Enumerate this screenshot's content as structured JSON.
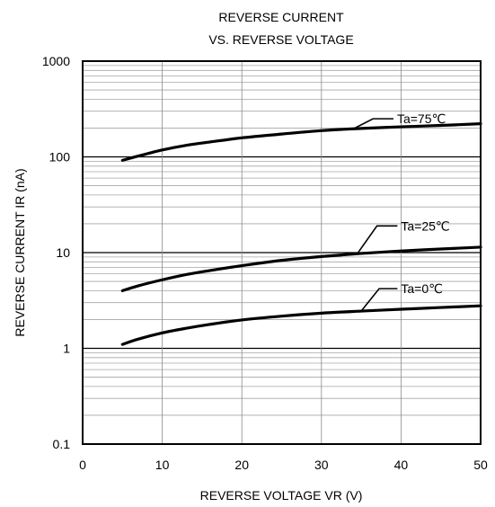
{
  "chart_data": {
    "type": "line",
    "title_line1": "REVERSE CURRENT",
    "title_line2": "VS. REVERSE VOLTAGE",
    "xlabel": "REVERSE VOLTAGE VR (V)",
    "ylabel": "REVERSE CURRENT IR (nA)",
    "xlim": [
      0,
      50
    ],
    "ylim": [
      0.1,
      1000
    ],
    "yscale": "log",
    "grid": true,
    "x_ticks": [
      0,
      10,
      20,
      30,
      40,
      50
    ],
    "x_tick_labels": [
      "0",
      "10",
      "20",
      "30",
      "40",
      "50"
    ],
    "y_ticks": [
      1000,
      100,
      10,
      1,
      0.1
    ],
    "y_tick_labels": [
      "1000",
      "100",
      "10",
      "1",
      "0.1"
    ],
    "series": [
      {
        "name": "Ta=75℃",
        "x": [
          5,
          7,
          10,
          13,
          16,
          20,
          25,
          30,
          35,
          40,
          45,
          50
        ],
        "y": [
          92,
          102,
          118,
          132,
          143,
          158,
          173,
          188,
          198,
          206,
          213,
          222
        ]
      },
      {
        "name": "Ta=25℃",
        "x": [
          5,
          7,
          10,
          13,
          16,
          20,
          25,
          30,
          35,
          40,
          45,
          50
        ],
        "y": [
          4.0,
          4.5,
          5.2,
          5.9,
          6.5,
          7.3,
          8.3,
          9.1,
          9.8,
          10.4,
          10.9,
          11.4
        ]
      },
      {
        "name": "Ta=0℃",
        "x": [
          5,
          7,
          10,
          13,
          16,
          20,
          25,
          30,
          35,
          40,
          45,
          50
        ],
        "y": [
          1.1,
          1.25,
          1.45,
          1.62,
          1.78,
          1.98,
          2.17,
          2.33,
          2.45,
          2.56,
          2.67,
          2.78
        ]
      }
    ],
    "annotations": [
      {
        "text": "Ta=75℃",
        "series": 0,
        "at_x": 34,
        "label_x": 39.5,
        "label_y": 250
      },
      {
        "text": "Ta=25℃",
        "series": 1,
        "at_x": 34.5,
        "label_x": 40,
        "label_y": 19
      },
      {
        "text": "Ta=0℃",
        "series": 2,
        "at_x": 35,
        "label_x": 40,
        "label_y": 4.2
      }
    ]
  }
}
